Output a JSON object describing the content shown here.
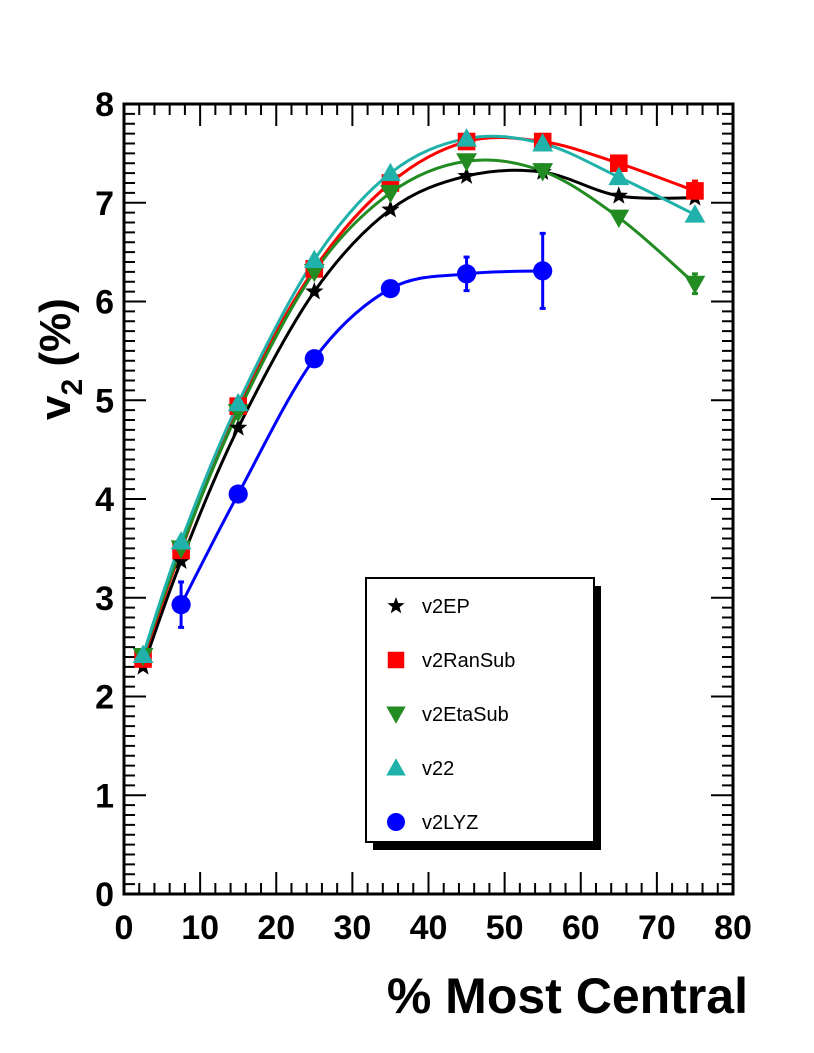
{
  "chart_data": {
    "type": "line",
    "xlabel": "% Most Central",
    "ylabel_main": "v",
    "ylabel_sub": "2",
    "ylabel_suffix": " (%)",
    "xlim": [
      0,
      80
    ],
    "ylim": [
      0,
      8
    ],
    "x_ticks": [
      0,
      10,
      20,
      30,
      40,
      50,
      60,
      70,
      80
    ],
    "y_ticks": [
      0,
      1,
      2,
      3,
      4,
      5,
      6,
      7,
      8
    ],
    "legend_position": "bottom-center",
    "series": [
      {
        "name": "v2EP",
        "marker": "star",
        "color": "#000000",
        "line_color": "#000000",
        "x": [
          2.5,
          7.5,
          15,
          25,
          35,
          45,
          55,
          65,
          75
        ],
        "y": [
          2.3,
          3.37,
          4.72,
          6.1,
          6.93,
          7.27,
          7.31,
          7.07,
          7.05
        ],
        "err": [
          0,
          0,
          0,
          0,
          0,
          0,
          0,
          0,
          0
        ]
      },
      {
        "name": "v2RanSub",
        "marker": "square",
        "color": "#ff0000",
        "line_color": "#ff0000",
        "x": [
          2.5,
          7.5,
          15,
          25,
          35,
          45,
          55,
          65,
          75
        ],
        "y": [
          2.38,
          3.48,
          4.94,
          6.33,
          7.2,
          7.62,
          7.62,
          7.4,
          7.12
        ],
        "err": [
          0,
          0,
          0,
          0,
          0,
          0,
          0,
          0,
          0.1
        ]
      },
      {
        "name": "v2EtaSub",
        "marker": "triangle-down",
        "color": "#228b22",
        "line_color": "#228b22",
        "x": [
          2.5,
          7.5,
          15,
          25,
          35,
          45,
          55,
          65,
          75
        ],
        "y": [
          2.41,
          3.5,
          4.88,
          6.3,
          7.1,
          7.42,
          7.32,
          6.85,
          6.18
        ],
        "err": [
          0,
          0,
          0,
          0,
          0,
          0,
          0,
          0,
          0.1
        ]
      },
      {
        "name": "v22",
        "marker": "triangle-up",
        "color": "#20b2aa",
        "line_color": "#20b2aa",
        "x": [
          2.5,
          7.5,
          15,
          25,
          35,
          45,
          55,
          65,
          75
        ],
        "y": [
          2.42,
          3.57,
          4.97,
          6.42,
          7.3,
          7.65,
          7.6,
          7.26,
          6.88
        ],
        "err": [
          0,
          0,
          0,
          0,
          0,
          0,
          0,
          0,
          0
        ]
      },
      {
        "name": "v2LYZ",
        "marker": "circle",
        "color": "#0000ff",
        "line_color": "#0000ff",
        "x": [
          7.5,
          15,
          25,
          35,
          45,
          55
        ],
        "y": [
          2.93,
          4.05,
          5.42,
          6.13,
          6.28,
          6.31
        ],
        "err": [
          0.23,
          0,
          0,
          0,
          0.17,
          0.38
        ]
      }
    ]
  }
}
